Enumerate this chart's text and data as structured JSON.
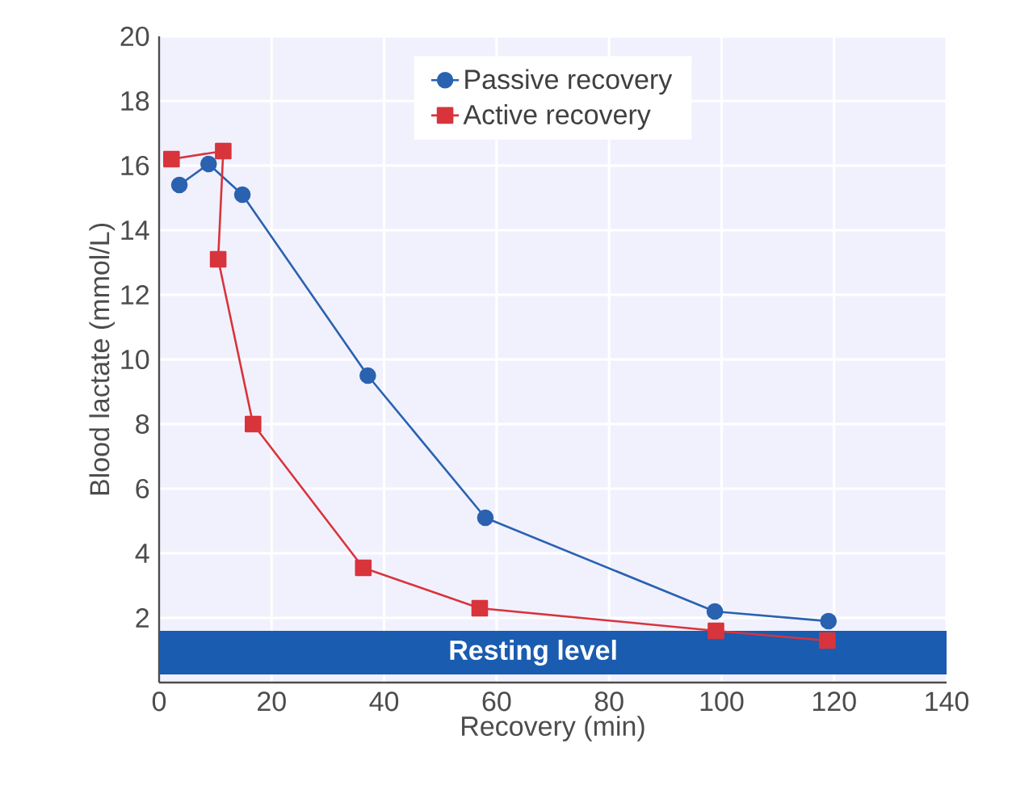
{
  "chart_data": {
    "type": "line",
    "xlabel": "Recovery (min)",
    "ylabel": "Blood lactate (mmol/L)",
    "series": [
      {
        "name": "Passive recovery",
        "color": "#2a62b0",
        "marker": "circle",
        "x": [
          3.6,
          8.8,
          14.8,
          37.1,
          58,
          98.8,
          119
        ],
        "values": [
          15.4,
          16.05,
          15.1,
          9.5,
          5.1,
          2.2,
          1.9
        ]
      },
      {
        "name": "Active recovery",
        "color": "#d8343c",
        "marker": "square",
        "x": [
          2.2,
          11.4,
          10.5,
          16.7,
          36.3,
          57,
          99,
          118.8
        ],
        "values": [
          16.2,
          16.45,
          13.1,
          8.0,
          3.55,
          2.3,
          1.6,
          1.3
        ]
      }
    ],
    "xlim": [
      0,
      140
    ],
    "ylim": [
      0,
      20
    ],
    "xticks": [
      0,
      20,
      40,
      60,
      80,
      100,
      120,
      140
    ],
    "yticks": [
      {
        "value": 0,
        "label": null
      },
      2,
      4,
      6,
      8,
      10,
      12,
      14,
      16,
      18,
      20
    ],
    "bands": [
      {
        "axis": "y",
        "from": 0.25,
        "to": 1.6,
        "label": "Resting level",
        "color": "#1a5cb0"
      }
    ],
    "grid": true,
    "legend": "top",
    "line_style": "solid"
  }
}
